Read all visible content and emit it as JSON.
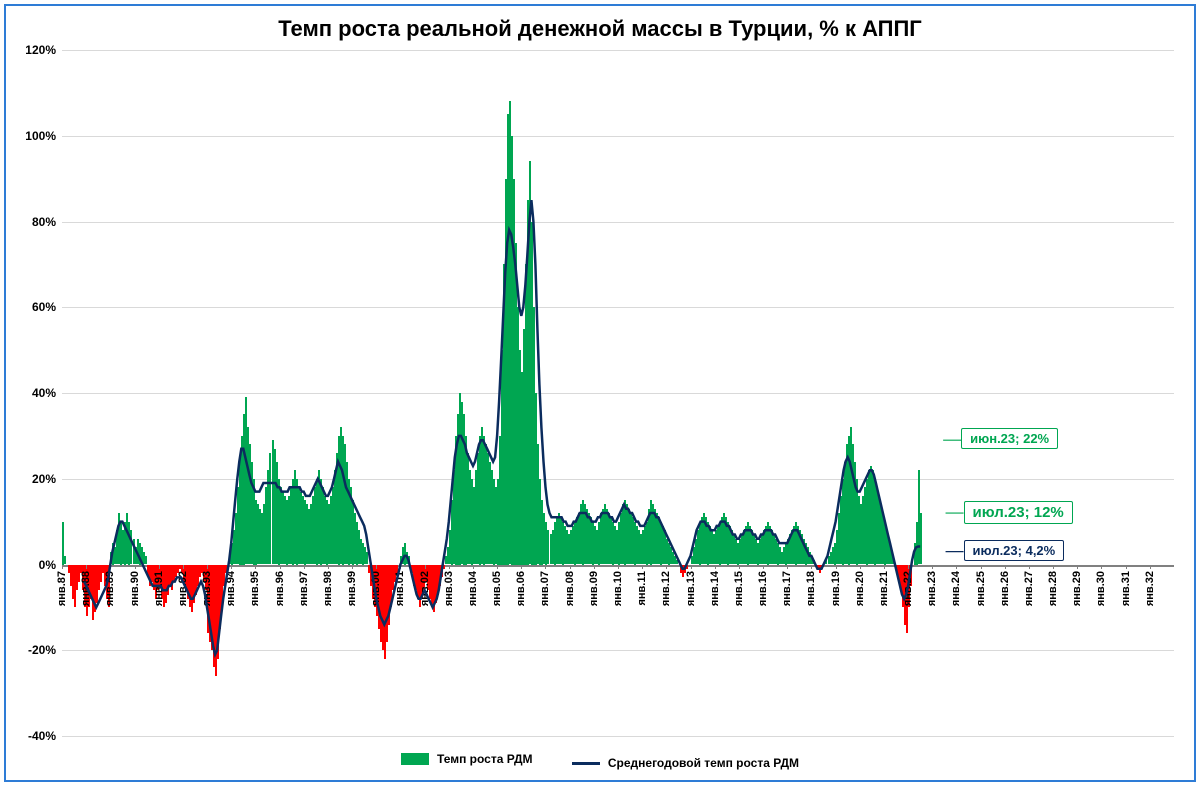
{
  "chart": {
    "type": "bar+line",
    "title": "Темп роста реальной денежной массы в Турции, % к АППГ",
    "title_fontsize": 22,
    "background_color": "#ffffff",
    "frame_border_color": "#2e7cd6",
    "grid_color": "#d9d9d9",
    "zero_line_color": "#808080",
    "y_axis": {
      "min": -40,
      "max": 120,
      "tick_step": 20,
      "tick_labels": [
        "-40%",
        "-20%",
        "0%",
        "20%",
        "40%",
        "60%",
        "80%",
        "100%",
        "120%"
      ],
      "label_fontsize": 12
    },
    "x_axis": {
      "year_start": 1987,
      "year_end": 2032,
      "tick_prefix": "янв.",
      "label_fontsize": 11,
      "label_years": [
        87,
        88,
        89,
        90,
        91,
        92,
        93,
        94,
        95,
        96,
        97,
        98,
        99,
        0,
        1,
        2,
        3,
        4,
        5,
        6,
        7,
        8,
        9,
        10,
        11,
        12,
        13,
        14,
        15,
        16,
        17,
        18,
        19,
        20,
        21,
        22,
        23,
        24,
        25,
        26,
        27,
        28,
        29,
        30,
        31,
        32
      ]
    },
    "legend": {
      "position": "bottom-center",
      "items": [
        {
          "label": "Темп роста РДМ",
          "type": "bar",
          "color": "#00a651"
        },
        {
          "label": "Среднегодовой темп роста РДМ",
          "type": "line",
          "color": "#0b2c5e"
        }
      ]
    },
    "colors": {
      "bar_positive": "#00a651",
      "bar_negative": "#ff0000",
      "line": "#0b2c5e",
      "line_width": 2.5
    },
    "bar_series": [
      10,
      2,
      0,
      -2,
      -5,
      -8,
      -10,
      -6,
      -4,
      -2,
      -6,
      -10,
      -12,
      -10,
      -8,
      -13,
      -11,
      -9,
      -6,
      -4,
      -2,
      -5,
      -8,
      -10,
      3,
      5,
      4,
      8,
      12,
      10,
      8,
      10,
      12,
      10,
      8,
      6,
      4,
      6,
      5,
      4,
      3,
      2,
      -3,
      -5,
      -4,
      -6,
      -8,
      -6,
      -5,
      -8,
      -10,
      -9,
      -7,
      -5,
      -6,
      -4,
      -3,
      -2,
      -1,
      -2,
      -4,
      -6,
      -8,
      -10,
      -11,
      -9,
      -7,
      -5,
      -3,
      -2,
      -4,
      -6,
      -16,
      -18,
      -20,
      -24,
      -26,
      -22,
      -15,
      -10,
      -5,
      -2,
      0,
      2,
      5,
      8,
      12,
      18,
      25,
      30,
      35,
      39,
      32,
      28,
      24,
      20,
      15,
      14,
      13,
      12,
      14,
      18,
      22,
      26,
      29,
      27,
      24,
      20,
      18,
      17,
      16,
      15,
      16,
      18,
      20,
      22,
      20,
      18,
      17,
      16,
      15,
      14,
      13,
      14,
      16,
      18,
      20,
      22,
      20,
      18,
      16,
      15,
      14,
      16,
      18,
      22,
      26,
      30,
      32,
      30,
      28,
      24,
      20,
      18,
      15,
      12,
      10,
      8,
      6,
      5,
      4,
      3,
      -2,
      -5,
      -8,
      -10,
      -12,
      -15,
      -18,
      -20,
      -22,
      -18,
      -14,
      -10,
      -6,
      -4,
      -2,
      0,
      2,
      4,
      5,
      3,
      2,
      -2,
      -5,
      -6,
      -8,
      -10,
      -8,
      -6,
      -4,
      -6,
      -8,
      -10,
      -11,
      -9,
      -7,
      -5,
      -3,
      -1,
      2,
      4,
      8,
      15,
      22,
      30,
      35,
      40,
      38,
      35,
      30,
      26,
      22,
      20,
      18,
      22,
      26,
      30,
      32,
      30,
      28,
      26,
      24,
      22,
      20,
      18,
      20,
      30,
      50,
      70,
      90,
      105,
      108,
      100,
      90,
      75,
      60,
      50,
      45,
      55,
      70,
      85,
      94,
      80,
      60,
      40,
      28,
      20,
      15,
      12,
      10,
      8,
      7,
      8,
      10,
      11,
      12,
      11,
      10,
      9,
      8,
      7,
      8,
      9,
      10,
      11,
      12,
      14,
      15,
      14,
      13,
      12,
      11,
      10,
      9,
      8,
      10,
      12,
      13,
      14,
      13,
      12,
      11,
      10,
      9,
      8,
      10,
      12,
      14,
      15,
      14,
      13,
      12,
      11,
      10,
      9,
      8,
      7,
      8,
      9,
      10,
      13,
      15,
      14,
      13,
      12,
      11,
      10,
      9,
      8,
      6,
      5,
      4,
      3,
      2,
      1,
      0,
      -2,
      -3,
      -2,
      -1,
      0,
      2,
      4,
      6,
      8,
      10,
      11,
      12,
      11,
      10,
      9,
      8,
      7,
      8,
      9,
      10,
      11,
      12,
      11,
      10,
      9,
      8,
      7,
      6,
      5,
      6,
      7,
      8,
      9,
      10,
      9,
      8,
      7,
      6,
      5,
      6,
      7,
      8,
      9,
      10,
      9,
      8,
      7,
      6,
      5,
      4,
      3,
      4,
      5,
      6,
      7,
      8,
      9,
      10,
      9,
      8,
      7,
      6,
      5,
      4,
      3,
      2,
      1,
      0,
      -1,
      -2,
      -1,
      0,
      1,
      2,
      3,
      4,
      5,
      8,
      12,
      16,
      20,
      24,
      28,
      30,
      32,
      28,
      24,
      20,
      16,
      14,
      16,
      18,
      20,
      22,
      23,
      22,
      20,
      18,
      16,
      14,
      12,
      10,
      8,
      6,
      4,
      2,
      0,
      -2,
      -4,
      -6,
      -10,
      -14,
      -16,
      -10,
      -5,
      0,
      5,
      10,
      22,
      12
    ],
    "line_series": [
      null,
      null,
      null,
      null,
      null,
      null,
      null,
      null,
      null,
      null,
      null,
      -4,
      -5,
      -6,
      -7,
      -8,
      -9,
      -10,
      -9,
      -8,
      -7,
      -6,
      -5,
      -3,
      0,
      3,
      5,
      7,
      9,
      10,
      10,
      9,
      8,
      7,
      6,
      5,
      4,
      3,
      2,
      1,
      0,
      -1,
      -2,
      -3,
      -4,
      -5,
      -5,
      -5,
      -5,
      -5,
      -6,
      -6,
      -6,
      -5,
      -5,
      -4,
      -4,
      -3,
      -3,
      -3,
      -4,
      -5,
      -6,
      -7,
      -8,
      -8,
      -7,
      -6,
      -5,
      -4,
      -5,
      -7,
      -10,
      -13,
      -16,
      -19,
      -21,
      -20,
      -16,
      -12,
      -8,
      -5,
      -2,
      1,
      5,
      10,
      15,
      20,
      24,
      27,
      27,
      25,
      23,
      21,
      19,
      18,
      17,
      17,
      17,
      18,
      19,
      19,
      19,
      19,
      19,
      19,
      19,
      18,
      18,
      17,
      17,
      17,
      17,
      18,
      18,
      18,
      18,
      18,
      18,
      17,
      17,
      16,
      16,
      16,
      17,
      18,
      19,
      20,
      19,
      18,
      17,
      16,
      16,
      17,
      18,
      20,
      22,
      24,
      23,
      22,
      20,
      18,
      17,
      16,
      15,
      14,
      13,
      12,
      11,
      10,
      9,
      7,
      4,
      1,
      -2,
      -5,
      -8,
      -10,
      -12,
      -13,
      -14,
      -13,
      -12,
      -10,
      -8,
      -6,
      -4,
      -2,
      0,
      1,
      2,
      2,
      1,
      -1,
      -3,
      -5,
      -7,
      -8,
      -8,
      -7,
      -6,
      -7,
      -8,
      -9,
      -10,
      -9,
      -8,
      -6,
      -3,
      0,
      3,
      6,
      10,
      15,
      20,
      25,
      28,
      30,
      30,
      29,
      28,
      26,
      25,
      24,
      23,
      24,
      26,
      28,
      29,
      29,
      28,
      27,
      26,
      25,
      24,
      25,
      30,
      38,
      48,
      58,
      68,
      75,
      78,
      77,
      74,
      70,
      65,
      60,
      58,
      60,
      65,
      72,
      80,
      85,
      80,
      70,
      55,
      42,
      32,
      24,
      18,
      14,
      12,
      11,
      11,
      11,
      11,
      11,
      11,
      10,
      10,
      9,
      9,
      9,
      10,
      10,
      11,
      12,
      12,
      12,
      12,
      11,
      11,
      10,
      10,
      10,
      11,
      11,
      12,
      12,
      12,
      12,
      11,
      11,
      10,
      10,
      11,
      12,
      13,
      14,
      13,
      13,
      12,
      12,
      11,
      10,
      10,
      9,
      9,
      9,
      10,
      11,
      12,
      12,
      12,
      11,
      11,
      10,
      9,
      8,
      7,
      6,
      5,
      4,
      3,
      2,
      1,
      0,
      -1,
      -1,
      0,
      1,
      2,
      4,
      6,
      8,
      9,
      10,
      10,
      10,
      9,
      9,
      8,
      8,
      8,
      9,
      9,
      10,
      10,
      10,
      9,
      9,
      8,
      7,
      7,
      6,
      6,
      7,
      7,
      8,
      8,
      8,
      8,
      7,
      7,
      6,
      6,
      7,
      7,
      8,
      8,
      8,
      8,
      7,
      7,
      6,
      5,
      5,
      5,
      5,
      5,
      6,
      7,
      8,
      8,
      8,
      7,
      6,
      5,
      4,
      3,
      2,
      2,
      1,
      0,
      -1,
      -1,
      -1,
      0,
      1,
      2,
      4,
      6,
      8,
      10,
      13,
      16,
      19,
      22,
      24,
      25,
      24,
      22,
      20,
      18,
      17,
      17,
      18,
      19,
      20,
      21,
      22,
      22,
      21,
      19,
      17,
      15,
      13,
      11,
      9,
      7,
      5,
      3,
      1,
      -1,
      -3,
      -5,
      -7,
      -8,
      -7,
      -5,
      -2,
      1,
      3,
      4,
      4.2,
      4.2
    ],
    "callouts": [
      {
        "text": "июн.23; 22%",
        "color": "green",
        "x_year": 2023.45,
        "y_val": 29
      },
      {
        "text": "июл.23; 12%",
        "color": "green",
        "x_year": 2023.55,
        "y_val": 12,
        "big": true
      },
      {
        "text": "июл.23; 4,2%",
        "color": "blue",
        "x_year": 2023.55,
        "y_val": 3
      }
    ]
  }
}
